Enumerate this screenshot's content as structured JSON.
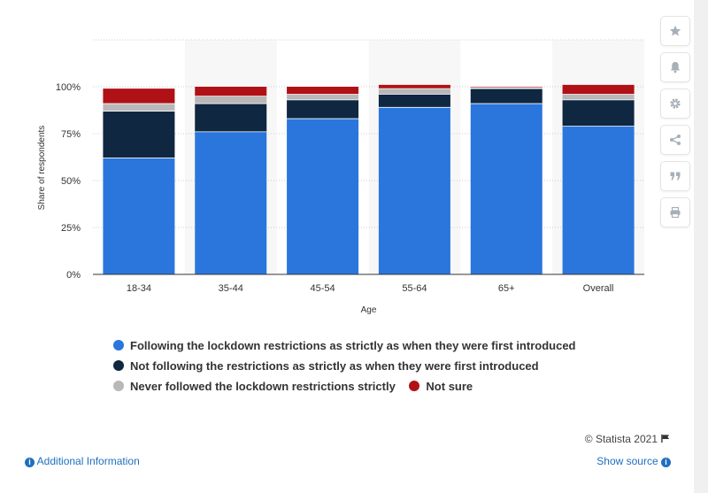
{
  "chart_data": {
    "type": "bar",
    "stacked": true,
    "categories": [
      "18-34",
      "35-44",
      "45-54",
      "55-64",
      "65+",
      "Overall"
    ],
    "series": [
      {
        "name": "Following the lockdown restrictions as strictly as when they were first introduced",
        "color": "#2a76dd",
        "values": [
          62,
          76,
          83,
          89,
          91,
          79
        ]
      },
      {
        "name": "Not following the restrictions as strictly as when they were first introduced",
        "color": "#0f2740",
        "values": [
          25,
          15,
          10,
          7,
          8,
          14
        ]
      },
      {
        "name": "Never followed the lockdown restrictions strictly",
        "color": "#b8b8b8",
        "values": [
          4,
          4,
          3,
          3,
          0.5,
          3
        ]
      },
      {
        "name": "Not sure",
        "color": "#b01116",
        "values": [
          8,
          5,
          4,
          2,
          0.5,
          5
        ]
      }
    ],
    "y_ticks": [
      "0%",
      "25%",
      "50%",
      "75%",
      "100%"
    ],
    "ylim": [
      0,
      125
    ],
    "xlabel": "Age",
    "ylabel": "Share of respondents",
    "grid": true,
    "legend_position": "bottom"
  },
  "tools": [
    {
      "name": "star-icon"
    },
    {
      "name": "bell-icon"
    },
    {
      "name": "gear-icon"
    },
    {
      "name": "share-icon"
    },
    {
      "name": "quote-icon"
    },
    {
      "name": "print-icon"
    }
  ],
  "footer": {
    "credit": "© Statista 2021",
    "additional_info": "Additional Information",
    "show_source": "Show source"
  }
}
